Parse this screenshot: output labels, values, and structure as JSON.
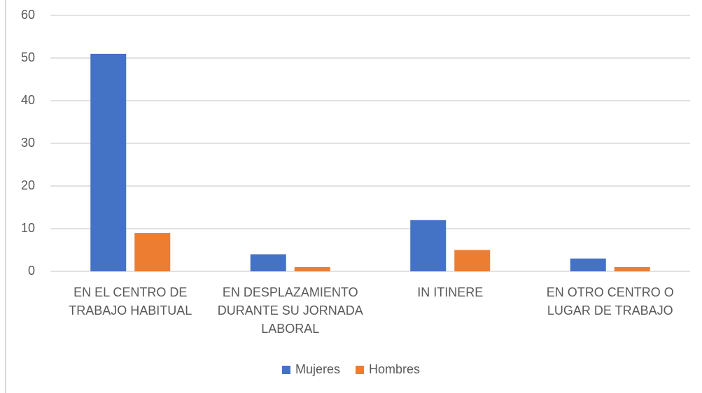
{
  "chart_data": {
    "type": "bar",
    "categories": [
      "EN EL CENTRO DE TRABAJO HABITUAL",
      "EN DESPLAZAMIENTO DURANTE SU JORNADA LABORAL",
      "IN ITINERE",
      "EN OTRO CENTRO O LUGAR DE TRABAJO"
    ],
    "series": [
      {
        "name": "Mujeres",
        "color": "#4472c4",
        "values": [
          51,
          4,
          12,
          3
        ]
      },
      {
        "name": "Hombres",
        "color": "#ed7d31",
        "values": [
          9,
          1,
          5,
          1
        ]
      }
    ],
    "ylim": [
      0,
      60
    ],
    "yticks": [
      0,
      10,
      20,
      30,
      40,
      50,
      60
    ],
    "grid": true,
    "legend": "bottom"
  }
}
